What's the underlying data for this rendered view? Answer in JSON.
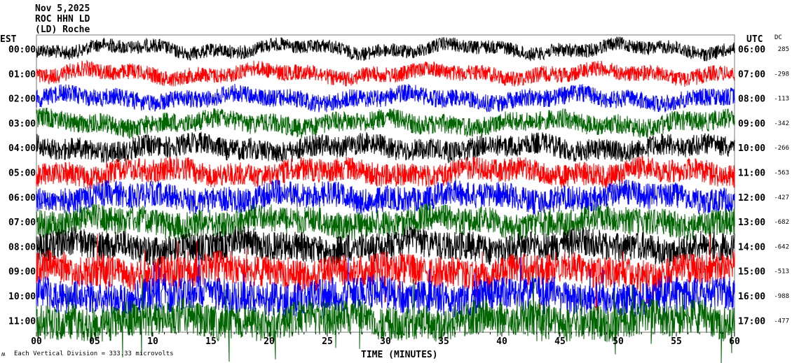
{
  "header": {
    "date": "Nov 5,2025",
    "station": "ROC HHN LD",
    "network": "(LD) Roche"
  },
  "left_axis_label": "EST",
  "right_axis_label": "UTC",
  "dc_label": "DC",
  "x_axis_label": "TIME (MINUTES)",
  "scale_note": "Each Vertical Division = 333.33 microvolts",
  "chart_data": {
    "type": "line",
    "subtype": "helicorder",
    "xlabel": "TIME (MINUTES)",
    "xlim": [
      0,
      60
    ],
    "x_ticks": [
      "00",
      "05",
      "10",
      "15",
      "20",
      "25",
      "30",
      "35",
      "40",
      "45",
      "50",
      "55",
      "60"
    ],
    "trace_colors": [
      "#000000",
      "#ff0000",
      "#0000ff",
      "#006400"
    ],
    "rows": [
      {
        "est": "00:00",
        "utc": "06:00",
        "dc": "285"
      },
      {
        "est": "01:00",
        "utc": "07:00",
        "dc": "-298"
      },
      {
        "est": "02:00",
        "utc": "08:00",
        "dc": "-113"
      },
      {
        "est": "03:00",
        "utc": "09:00",
        "dc": "-342"
      },
      {
        "est": "04:00",
        "utc": "10:00",
        "dc": "-266"
      },
      {
        "est": "05:00",
        "utc": "11:00",
        "dc": "-563"
      },
      {
        "est": "06:00",
        "utc": "12:00",
        "dc": "-427"
      },
      {
        "est": "07:00",
        "utc": "13:00",
        "dc": "-682"
      },
      {
        "est": "08:00",
        "utc": "14:00",
        "dc": "-642"
      },
      {
        "est": "09:00",
        "utc": "15:00",
        "dc": "-513"
      },
      {
        "est": "10:00",
        "utc": "16:00",
        "dc": "-988"
      },
      {
        "est": "11:00",
        "utc": "17:00",
        "dc": "-477"
      }
    ]
  }
}
